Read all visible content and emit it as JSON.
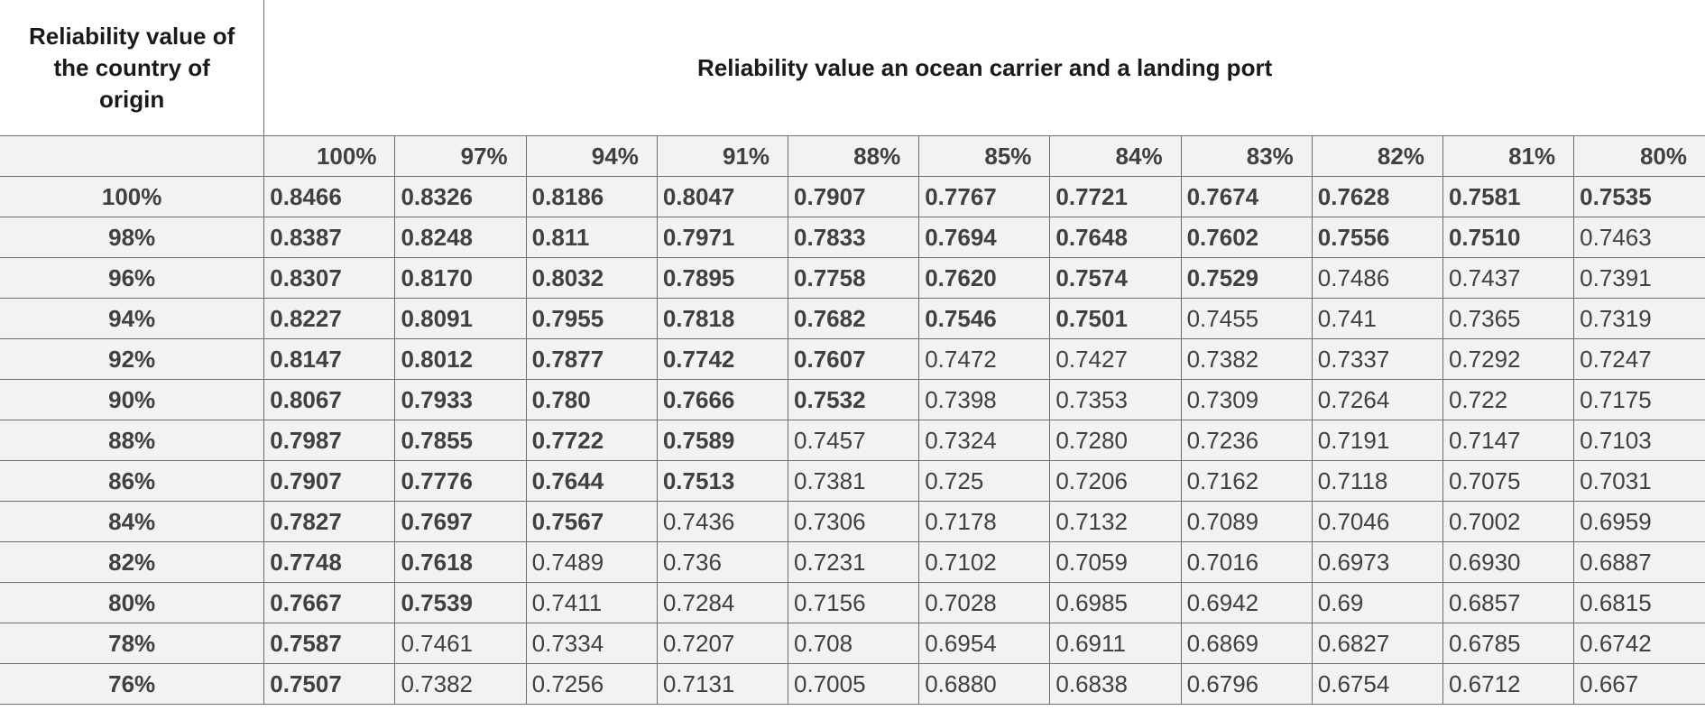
{
  "header": {
    "row_header_title": "Reliability value of the country of origin",
    "row_header_lines": [
      "Reliability value of",
      "the country of",
      "origin"
    ],
    "column_group_title": "Reliability value an ocean carrier and a landing port"
  },
  "columns": [
    "100%",
    "97%",
    "94%",
    "91%",
    "88%",
    "85%",
    "84%",
    "83%",
    "82%",
    "81%",
    "80%"
  ],
  "rows": [
    {
      "label": "100%",
      "values": [
        "0.8466",
        "0.8326",
        "0.8186",
        "0.8047",
        "0.7907",
        "0.7767",
        "0.7721",
        "0.7674",
        "0.7628",
        "0.7581",
        "0.7535"
      ],
      "bold_count": 11
    },
    {
      "label": "98%",
      "values": [
        "0.8387",
        "0.8248",
        "0.811",
        "0.7971",
        "0.7833",
        "0.7694",
        "0.7648",
        "0.7602",
        "0.7556",
        "0.7510",
        "0.7463"
      ],
      "bold_count": 10
    },
    {
      "label": "96%",
      "values": [
        "0.8307",
        "0.8170",
        "0.8032",
        "0.7895",
        "0.7758",
        "0.7620",
        "0.7574",
        "0.7529",
        "0.7486",
        "0.7437",
        "0.7391"
      ],
      "bold_count": 8
    },
    {
      "label": "94%",
      "values": [
        "0.8227",
        "0.8091",
        "0.7955",
        "0.7818",
        "0.7682",
        "0.7546",
        "0.7501",
        "0.7455",
        "0.741",
        "0.7365",
        "0.7319"
      ],
      "bold_count": 7
    },
    {
      "label": "92%",
      "values": [
        "0.8147",
        "0.8012",
        "0.7877",
        "0.7742",
        "0.7607",
        "0.7472",
        "0.7427",
        "0.7382",
        "0.7337",
        "0.7292",
        "0.7247"
      ],
      "bold_count": 5
    },
    {
      "label": "90%",
      "values": [
        "0.8067",
        "0.7933",
        "0.780",
        "0.7666",
        "0.7532",
        "0.7398",
        "0.7353",
        "0.7309",
        "0.7264",
        "0.722",
        "0.7175"
      ],
      "bold_count": 5
    },
    {
      "label": "88%",
      "values": [
        "0.7987",
        "0.7855",
        "0.7722",
        "0.7589",
        "0.7457",
        "0.7324",
        "0.7280",
        "0.7236",
        "0.7191",
        "0.7147",
        "0.7103"
      ],
      "bold_count": 4
    },
    {
      "label": "86%",
      "values": [
        "0.7907",
        "0.7776",
        "0.7644",
        "0.7513",
        "0.7381",
        "0.725",
        "0.7206",
        "0.7162",
        "0.7118",
        "0.7075",
        "0.7031"
      ],
      "bold_count": 4
    },
    {
      "label": "84%",
      "values": [
        "0.7827",
        "0.7697",
        "0.7567",
        "0.7436",
        "0.7306",
        "0.7178",
        "0.7132",
        "0.7089",
        "0.7046",
        "0.7002",
        "0.6959"
      ],
      "bold_count": 3
    },
    {
      "label": "82%",
      "values": [
        "0.7748",
        "0.7618",
        "0.7489",
        "0.736",
        "0.7231",
        "0.7102",
        "0.7059",
        "0.7016",
        "0.6973",
        "0.6930",
        "0.6887"
      ],
      "bold_count": 2
    },
    {
      "label": "80%",
      "values": [
        "0.7667",
        "0.7539",
        "0.7411",
        "0.7284",
        "0.7156",
        "0.7028",
        "0.6985",
        "0.6942",
        "0.69",
        "0.6857",
        "0.6815"
      ],
      "bold_count": 2
    },
    {
      "label": "78%",
      "values": [
        "0.7587",
        "0.7461",
        "0.7334",
        "0.7207",
        "0.708",
        "0.6954",
        "0.6911",
        "0.6869",
        "0.6827",
        "0.6785",
        "0.6742"
      ],
      "bold_count": 1
    },
    {
      "label": "76%",
      "values": [
        "0.7507",
        "0.7382",
        "0.7256",
        "0.7131",
        "0.7005",
        "0.6880",
        "0.6838",
        "0.6796",
        "0.6754",
        "0.6712",
        "0.667"
      ],
      "bold_count": 1
    }
  ]
}
